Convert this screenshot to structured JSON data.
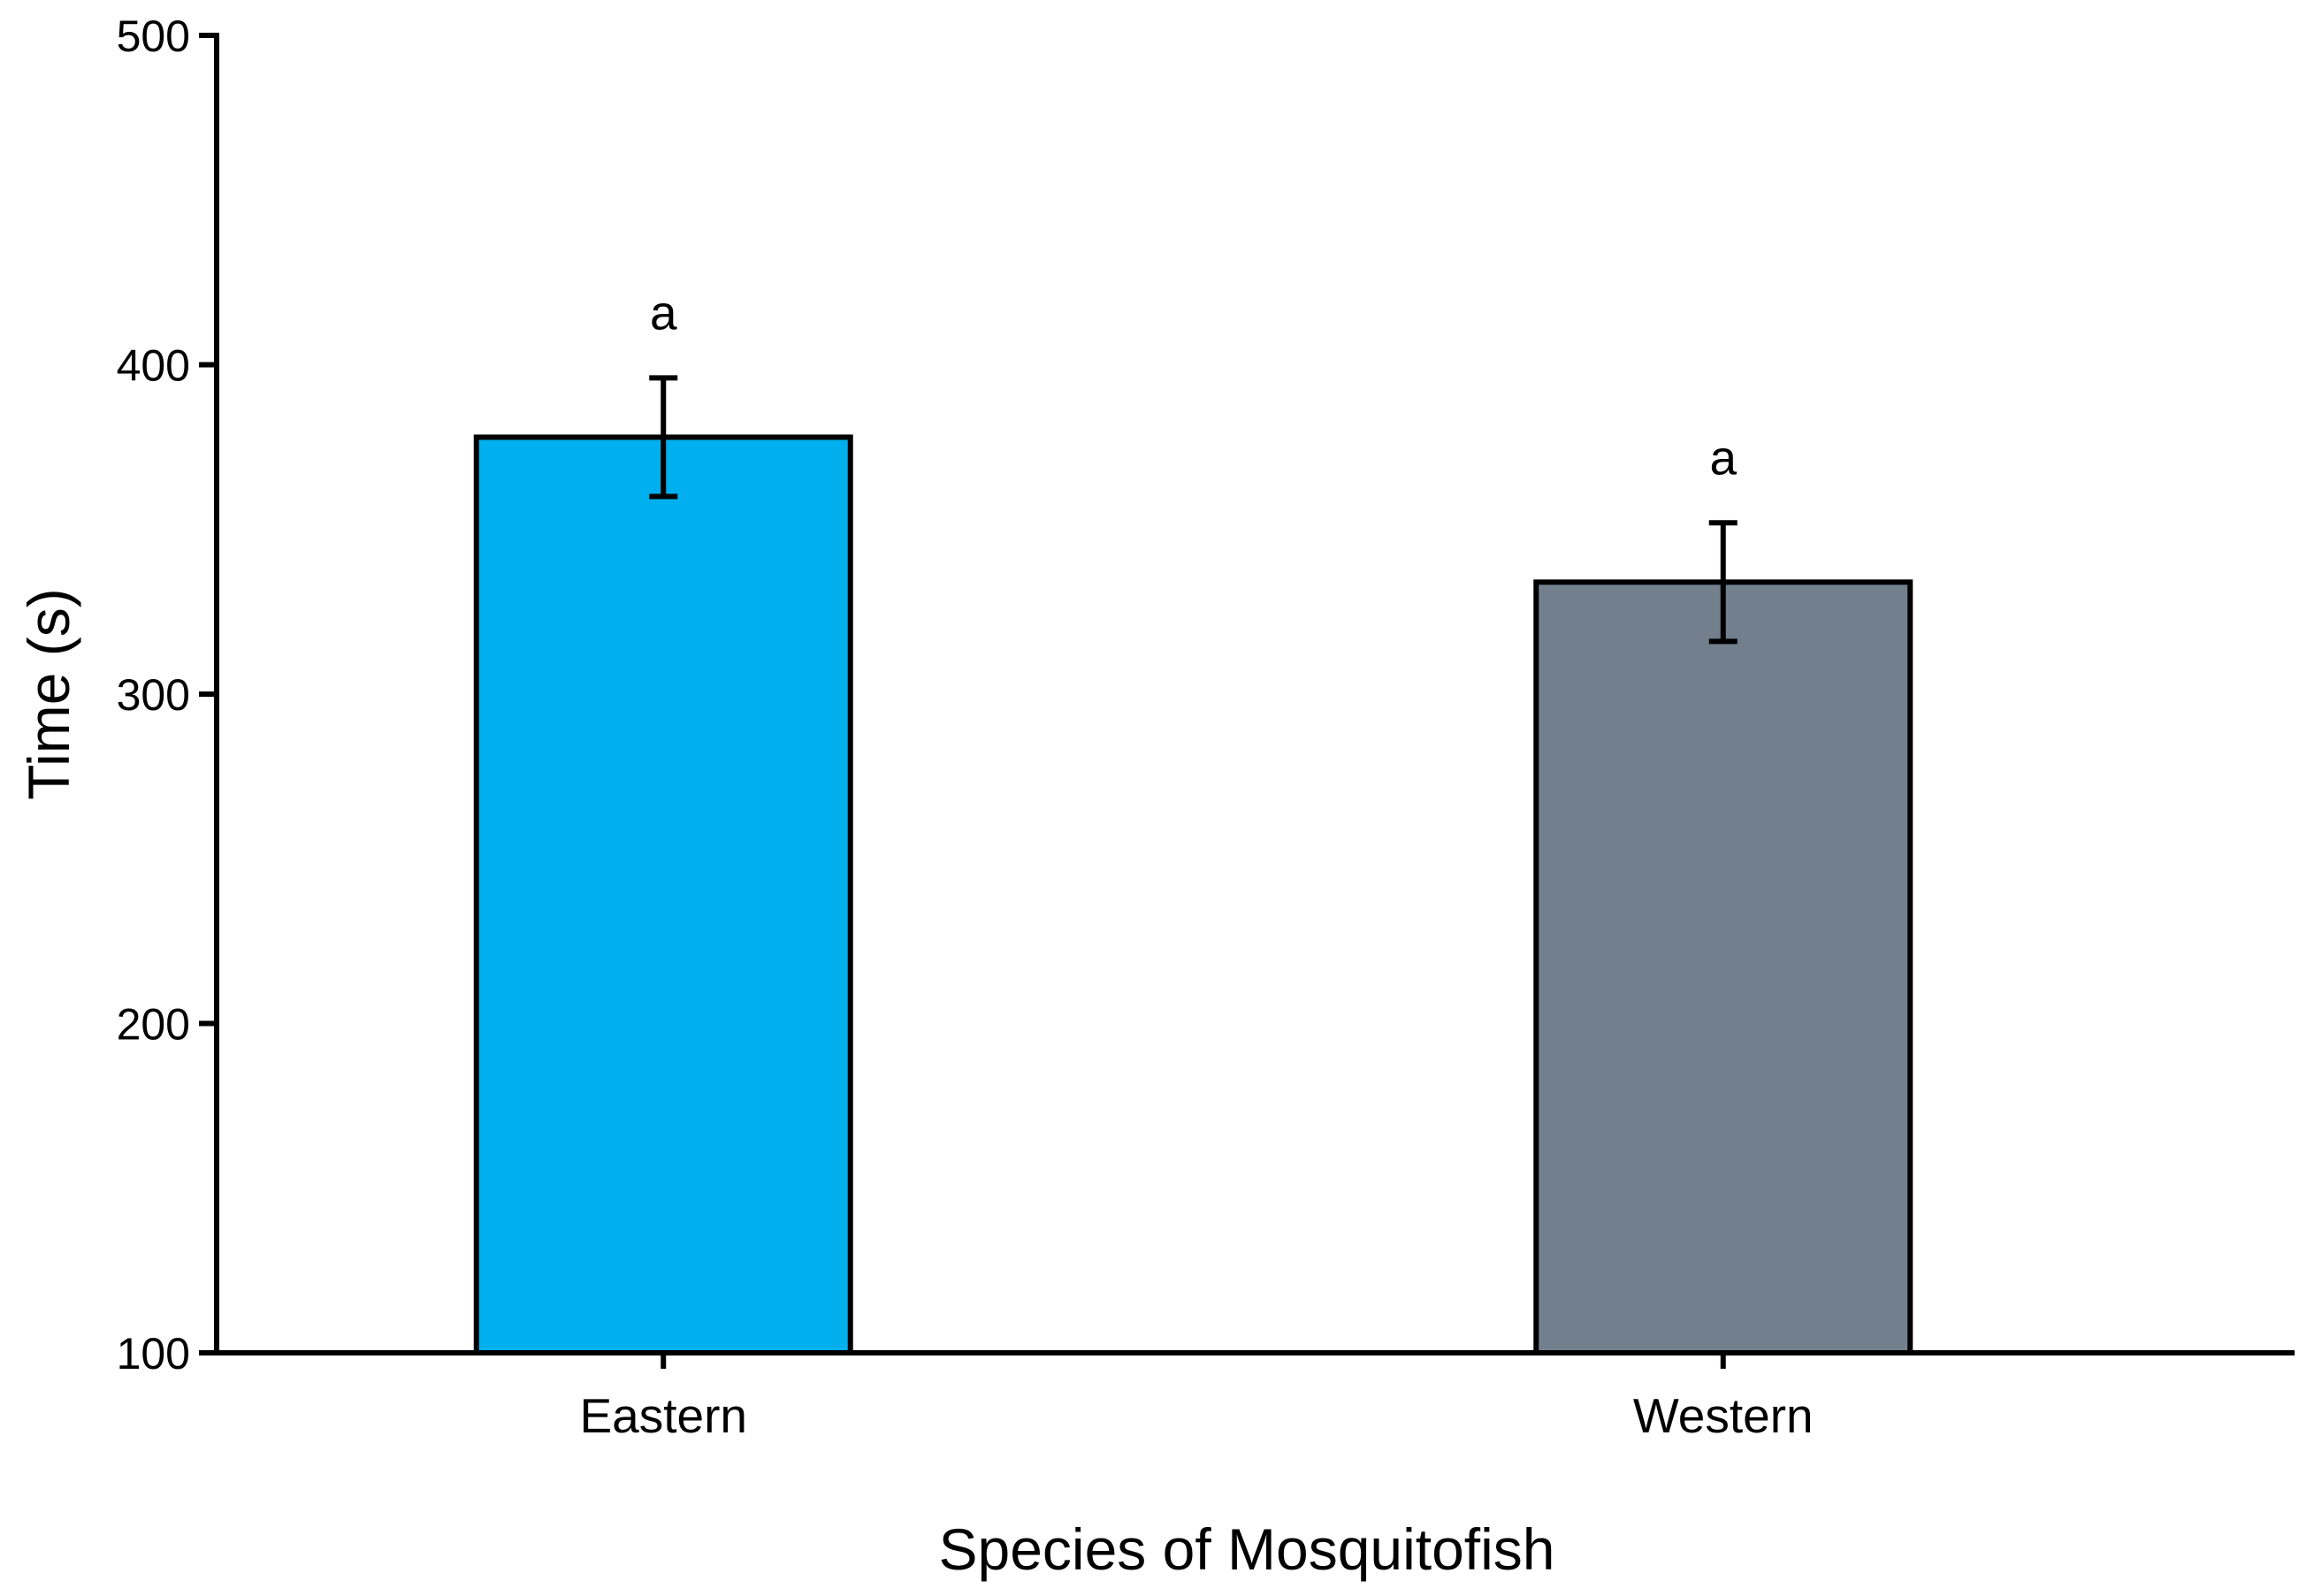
{
  "chart_data": {
    "type": "bar",
    "title": "",
    "xlabel": "Species of Mosquitofish",
    "ylabel": "Time (s)",
    "ylim": [
      100,
      500
    ],
    "yticks": [
      100,
      200,
      300,
      400,
      500
    ],
    "ytick_labels": [
      "100",
      "200",
      "300",
      "400",
      "500"
    ],
    "grid": false,
    "categories": [
      "Eastern",
      "Western"
    ],
    "values": [
      378,
      334
    ],
    "error": [
      18,
      18
    ],
    "significance_letters": [
      "a",
      "a"
    ],
    "colors": [
      "#00B0EE",
      "#72808E"
    ],
    "edge_color": "#000000"
  }
}
